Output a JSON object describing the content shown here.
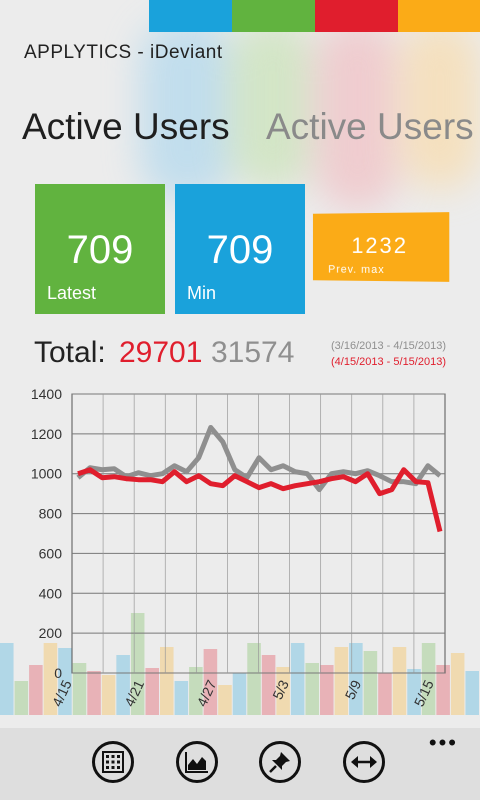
{
  "colors": {
    "green": "#61b33f",
    "blue": "#1aa2db",
    "red": "#e01e2d",
    "orange": "#fbab17",
    "gray": "#8f8f8f"
  },
  "app": {
    "title": "APPLYTICS - iDeviant"
  },
  "pivot": {
    "active": "Active Users",
    "next": "Active Users"
  },
  "tiles": {
    "latest": {
      "value": "709",
      "label": "Latest"
    },
    "min": {
      "value": "709",
      "label": "Min"
    },
    "prev_max": {
      "value": "1232",
      "label": "Prev. max"
    }
  },
  "totals": {
    "label": "Total:",
    "current": "29701",
    "previous": "31574",
    "previous_range": "(3/16/2013 - 4/15/2013)",
    "current_range": "(4/15/2013 - 5/15/2013)"
  },
  "chart_data": {
    "type": "line",
    "ylim": [
      0,
      1400
    ],
    "yticks": [
      "1400",
      "1200",
      "1000",
      "800",
      "600",
      "400",
      "200",
      "0"
    ],
    "xticks": [
      "4/15",
      "4/21",
      "4/27",
      "5/3",
      "5/9",
      "5/15"
    ],
    "grid": true,
    "series": [
      {
        "color": "#e01e2d",
        "values": [
          1000,
          1020,
          980,
          985,
          975,
          970,
          970,
          960,
          1010,
          960,
          990,
          950,
          940,
          990,
          960,
          930,
          950,
          925,
          940,
          950,
          960,
          975,
          985,
          960,
          1000,
          900,
          920,
          1020,
          960,
          955,
          710
        ]
      },
      {
        "color": "#8f8f8f",
        "values": [
          980,
          1030,
          1020,
          1025,
          985,
          1005,
          990,
          1000,
          1040,
          1010,
          1080,
          1232,
          1160,
          1020,
          980,
          1080,
          1020,
          1040,
          1010,
          1000,
          920,
          1000,
          1010,
          1000,
          1015,
          990,
          960,
          960,
          950,
          1040,
          990
        ]
      }
    ]
  },
  "appbar": {
    "buttons": [
      "calendar-icon",
      "chart-icon",
      "pin-icon",
      "compare-arrows-icon"
    ],
    "more": "•••"
  }
}
